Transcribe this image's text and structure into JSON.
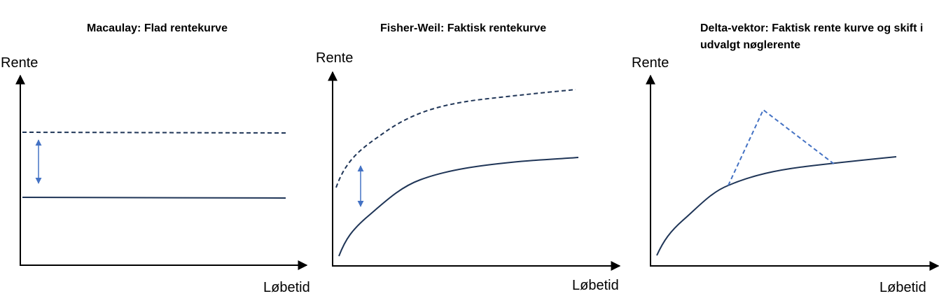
{
  "panels": [
    {
      "title": "Macaulay: Flad rentekurve",
      "y_axis_label": "Rente",
      "x_axis_label": "Løbetid"
    },
    {
      "title": "Fisher-Weil: Faktisk rentekurve",
      "y_axis_label": "Rente",
      "x_axis_label": "Løbetid"
    },
    {
      "title": "Delta-vektor: Faktisk rente kurve og skift i udvalgt nøglerente",
      "y_axis_label": "Rente",
      "x_axis_label": "Løbetid"
    }
  ],
  "colors": {
    "curve": "#1f3557",
    "shift_arrow": "#4472c4",
    "key_rate_shift": "#4472c4",
    "axis": "#000000"
  }
}
